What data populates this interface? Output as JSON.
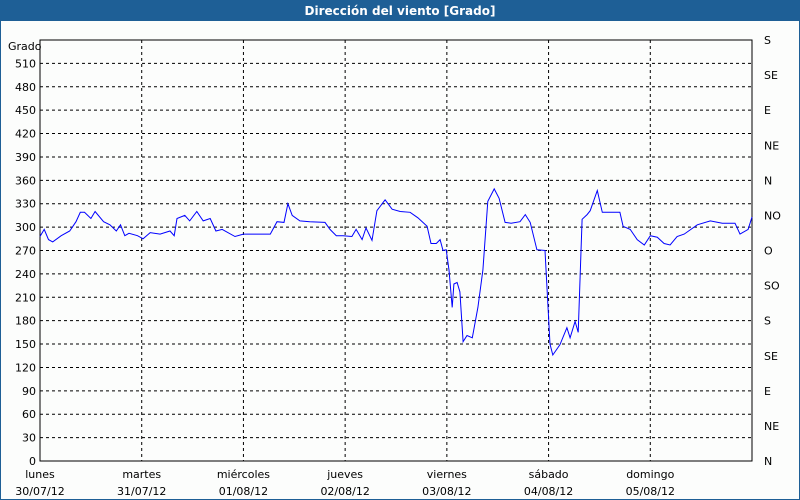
{
  "chart_data": {
    "type": "line",
    "title": "Dirección del viento [Grado]",
    "ylabel": "Grado",
    "ylim": [
      0,
      540
    ],
    "yticks": [
      0,
      30,
      60,
      90,
      120,
      150,
      180,
      210,
      240,
      270,
      300,
      330,
      360,
      390,
      420,
      450,
      480,
      510
    ],
    "y2ticks": [
      {
        "value": 0,
        "label": "N"
      },
      {
        "value": 45,
        "label": "NE"
      },
      {
        "value": 90,
        "label": "E"
      },
      {
        "value": 135,
        "label": "SE"
      },
      {
        "value": 180,
        "label": "S"
      },
      {
        "value": 225,
        "label": "SO"
      },
      {
        "value": 270,
        "label": "O"
      },
      {
        "value": 315,
        "label": "NO"
      },
      {
        "value": 360,
        "label": "N"
      },
      {
        "value": 405,
        "label": "NE"
      },
      {
        "value": 450,
        "label": "E"
      },
      {
        "value": 495,
        "label": "SE"
      },
      {
        "value": 540,
        "label": "S"
      }
    ],
    "xlim": [
      "2012-07-30 00:00",
      "2012-08-06 00:00"
    ],
    "xticks": [
      {
        "date": "2012-07-30",
        "day": "lunes",
        "label": "30/07/12"
      },
      {
        "date": "2012-07-31",
        "day": "martes",
        "label": "31/07/12"
      },
      {
        "date": "2012-08-01",
        "day": "miércoles",
        "label": "01/08/12"
      },
      {
        "date": "2012-08-02",
        "day": "jueves",
        "label": "02/08/12"
      },
      {
        "date": "2012-08-03",
        "day": "viernes",
        "label": "03/08/12"
      },
      {
        "date": "2012-08-04",
        "day": "sábado",
        "label": "04/08/12"
      },
      {
        "date": "2012-08-05",
        "day": "domingo",
        "label": "05/08/12"
      }
    ],
    "grid": true,
    "line_color": "#0000ff",
    "series": [
      {
        "x": [
          "2012-07-30 00:00",
          "2012-07-30 01:00",
          "2012-07-30 02:00",
          "2012-07-30 03:00",
          "2012-07-30 05:00",
          "2012-07-30 07:00",
          "2012-07-30 08:30",
          "2012-07-30 09:30",
          "2012-07-30 10:30",
          "2012-07-30 12:00",
          "2012-07-30 13:00",
          "2012-07-30 15:00",
          "2012-07-30 16:30",
          "2012-07-30 18:00",
          "2012-07-30 19:00",
          "2012-07-30 20:00",
          "2012-07-30 21:00",
          "2012-07-30 23:00",
          "2012-07-31 00:20",
          "2012-07-31 02:00",
          "2012-07-31 04:20",
          "2012-07-31 06:40",
          "2012-07-31 07:40",
          "2012-07-31 08:20",
          "2012-07-31 10:10",
          "2012-07-31 11:20",
          "2012-07-31 13:00",
          "2012-07-31 14:30",
          "2012-07-31 16:10",
          "2012-07-31 17:30",
          "2012-07-31 19:00",
          "2012-07-31 22:00",
          "2012-08-01 00:00",
          "2012-08-01 02:40",
          "2012-08-01 06:20",
          "2012-08-01 07:55",
          "2012-08-01 09:35",
          "2012-08-01 10:30",
          "2012-08-01 11:30",
          "2012-08-01 13:20",
          "2012-08-01 15:40",
          "2012-08-01 19:15",
          "2012-08-01 20:25",
          "2012-08-01 21:55",
          "2012-08-01 23:30",
          "2012-08-02 01:35",
          "2012-08-02 02:35",
          "2012-08-02 04:00",
          "2012-08-02 04:55",
          "2012-08-02 06:20",
          "2012-08-02 07:30",
          "2012-08-02 09:25",
          "2012-08-02 11:05",
          "2012-08-02 13:00",
          "2012-08-02 15:20",
          "2012-08-02 17:10",
          "2012-08-02 19:20",
          "2012-08-02 20:15",
          "2012-08-02 21:30",
          "2012-08-02 22:25",
          "2012-08-02 23:05",
          "2012-08-02 23:50",
          "2012-08-03 00:30",
          "2012-08-03 01:15",
          "2012-08-03 01:40",
          "2012-08-03 02:25",
          "2012-08-03 03:05",
          "2012-08-03 03:50",
          "2012-08-03 04:45",
          "2012-08-03 06:00",
          "2012-08-03 07:20",
          "2012-08-03 08:30",
          "2012-08-03 09:40",
          "2012-08-03 11:10",
          "2012-08-03 12:20",
          "2012-08-03 13:45",
          "2012-08-03 15:10",
          "2012-08-03 17:15",
          "2012-08-03 18:30",
          "2012-08-03 19:40",
          "2012-08-03 21:15",
          "2012-08-03 23:10",
          "2012-08-04 00:20",
          "2012-08-04 01:00",
          "2012-08-04 02:40",
          "2012-08-04 04:20",
          "2012-08-04 05:05",
          "2012-08-04 06:15",
          "2012-08-04 07:00",
          "2012-08-04 07:55",
          "2012-08-04 09:05",
          "2012-08-04 09:50",
          "2012-08-04 11:30",
          "2012-08-04 12:40",
          "2012-08-04 16:50",
          "2012-08-04 17:35",
          "2012-08-04 19:15",
          "2012-08-04 20:55",
          "2012-08-04 22:35",
          "2012-08-05 00:00",
          "2012-08-05 01:40",
          "2012-08-05 03:15",
          "2012-08-05 04:40",
          "2012-08-05 06:20",
          "2012-08-05 08:00",
          "2012-08-05 11:05",
          "2012-08-05 14:10",
          "2012-08-05 17:00",
          "2012-08-05 20:00",
          "2012-08-05 21:10",
          "2012-08-05 23:05",
          "2012-08-06 00:00"
        ],
        "y": [
          288,
          297,
          284,
          281,
          289,
          295,
          307,
          319,
          319,
          311,
          320,
          307,
          303,
          295,
          303,
          289,
          292,
          289,
          285,
          293,
          291,
          295,
          289,
          311,
          315,
          308,
          320,
          308,
          311,
          295,
          297,
          288,
          291,
          291,
          291,
          307,
          306,
          330,
          315,
          308,
          307,
          306,
          297,
          289,
          289,
          288,
          297,
          284,
          299,
          283,
          321,
          335,
          323,
          320,
          319,
          312,
          301,
          279,
          279,
          284,
          270,
          271,
          245,
          197,
          227,
          229,
          217,
          153,
          161,
          158,
          197,
          245,
          333,
          349,
          337,
          306,
          305,
          307,
          316,
          306,
          271,
          270,
          150,
          136,
          149,
          171,
          158,
          179,
          165,
          310,
          316,
          321,
          347,
          319,
          319,
          301,
          297,
          284,
          277,
          289,
          287,
          279,
          277,
          288,
          291,
          303,
          308,
          305,
          305,
          291,
          297,
          313
        ]
      }
    ]
  }
}
